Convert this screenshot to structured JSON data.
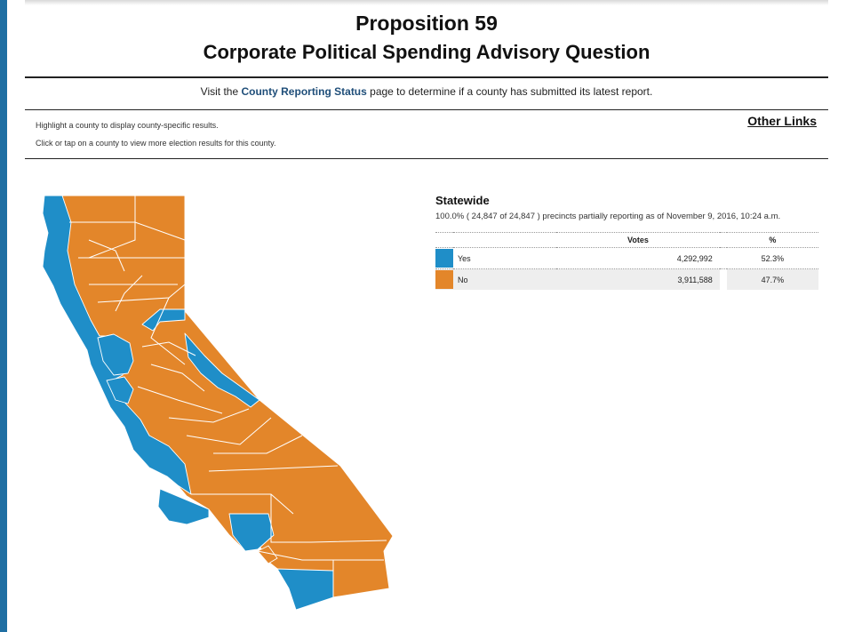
{
  "header": {
    "title": "Proposition 59",
    "subtitle": "Corporate Political Spending Advisory Question"
  },
  "notice": {
    "prefix": "Visit the",
    "link": "County Reporting Status",
    "suffix": "page to determine if a county has submitted its latest report."
  },
  "hints": {
    "highlight": "Highlight a county to display county-specific results.",
    "click": "Click or tap on a county to view more election results for this county."
  },
  "other_links": "Other Links",
  "statewide": {
    "title": "Statewide",
    "status": "100.0% ( 24,847 of 24,847 ) precincts partially reporting as of November 9, 2016, 10:24 a.m.",
    "headers": {
      "votes": "Votes",
      "percent": "%"
    },
    "rows": [
      {
        "choice": "Yes",
        "votes": "4,292,992",
        "percent": "52.3%",
        "color": "#1f8ec8"
      },
      {
        "choice": "No",
        "votes": "3,911,588",
        "percent": "47.7%",
        "color": "#e3862a"
      }
    ]
  },
  "map": {
    "colors": {
      "yes": "#1f8ec8",
      "no": "#e3862a",
      "border": "#ffffff"
    }
  }
}
